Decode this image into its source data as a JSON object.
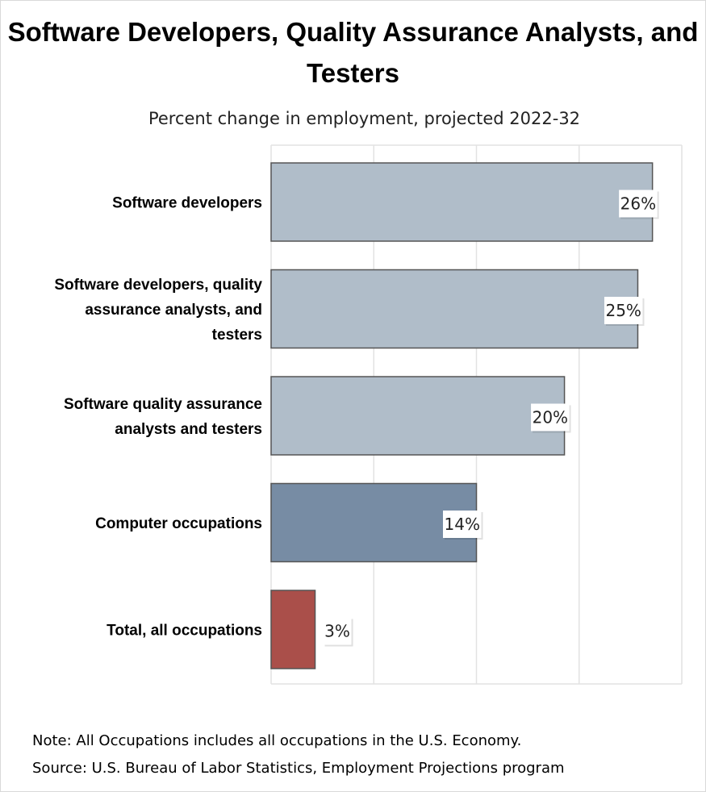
{
  "chart_data": {
    "type": "bar",
    "orientation": "horizontal",
    "title": "Software Developers, Quality Assurance Analysts, and Testers",
    "subtitle": "Percent change in employment, projected 2022-32",
    "categories": [
      "Software developers",
      "Software developers, quality assurance analysts, and testers",
      "Software quality assurance analysts and testers",
      "Computer occupations",
      "Total, all occupations"
    ],
    "values": [
      26,
      25,
      20,
      14,
      3
    ],
    "value_labels": [
      "26%",
      "25%",
      "20%",
      "14%",
      "3%"
    ],
    "bar_colors": [
      "#b0bdc9",
      "#b0bdc9",
      "#b0bdc9",
      "#778ca4",
      "#aa4f4a"
    ],
    "xlim": [
      0,
      28
    ],
    "grid": true,
    "legend": "none"
  },
  "notes": {
    "note": "Note: All Occupations includes all occupations in the U.S. Economy.",
    "source": "Source: U.S. Bureau of Labor Statistics, Employment Projections program"
  },
  "colors": {
    "gridline": "#e2e2e2",
    "bar_border": "#555555",
    "label_box_bg": "#ffffff"
  }
}
